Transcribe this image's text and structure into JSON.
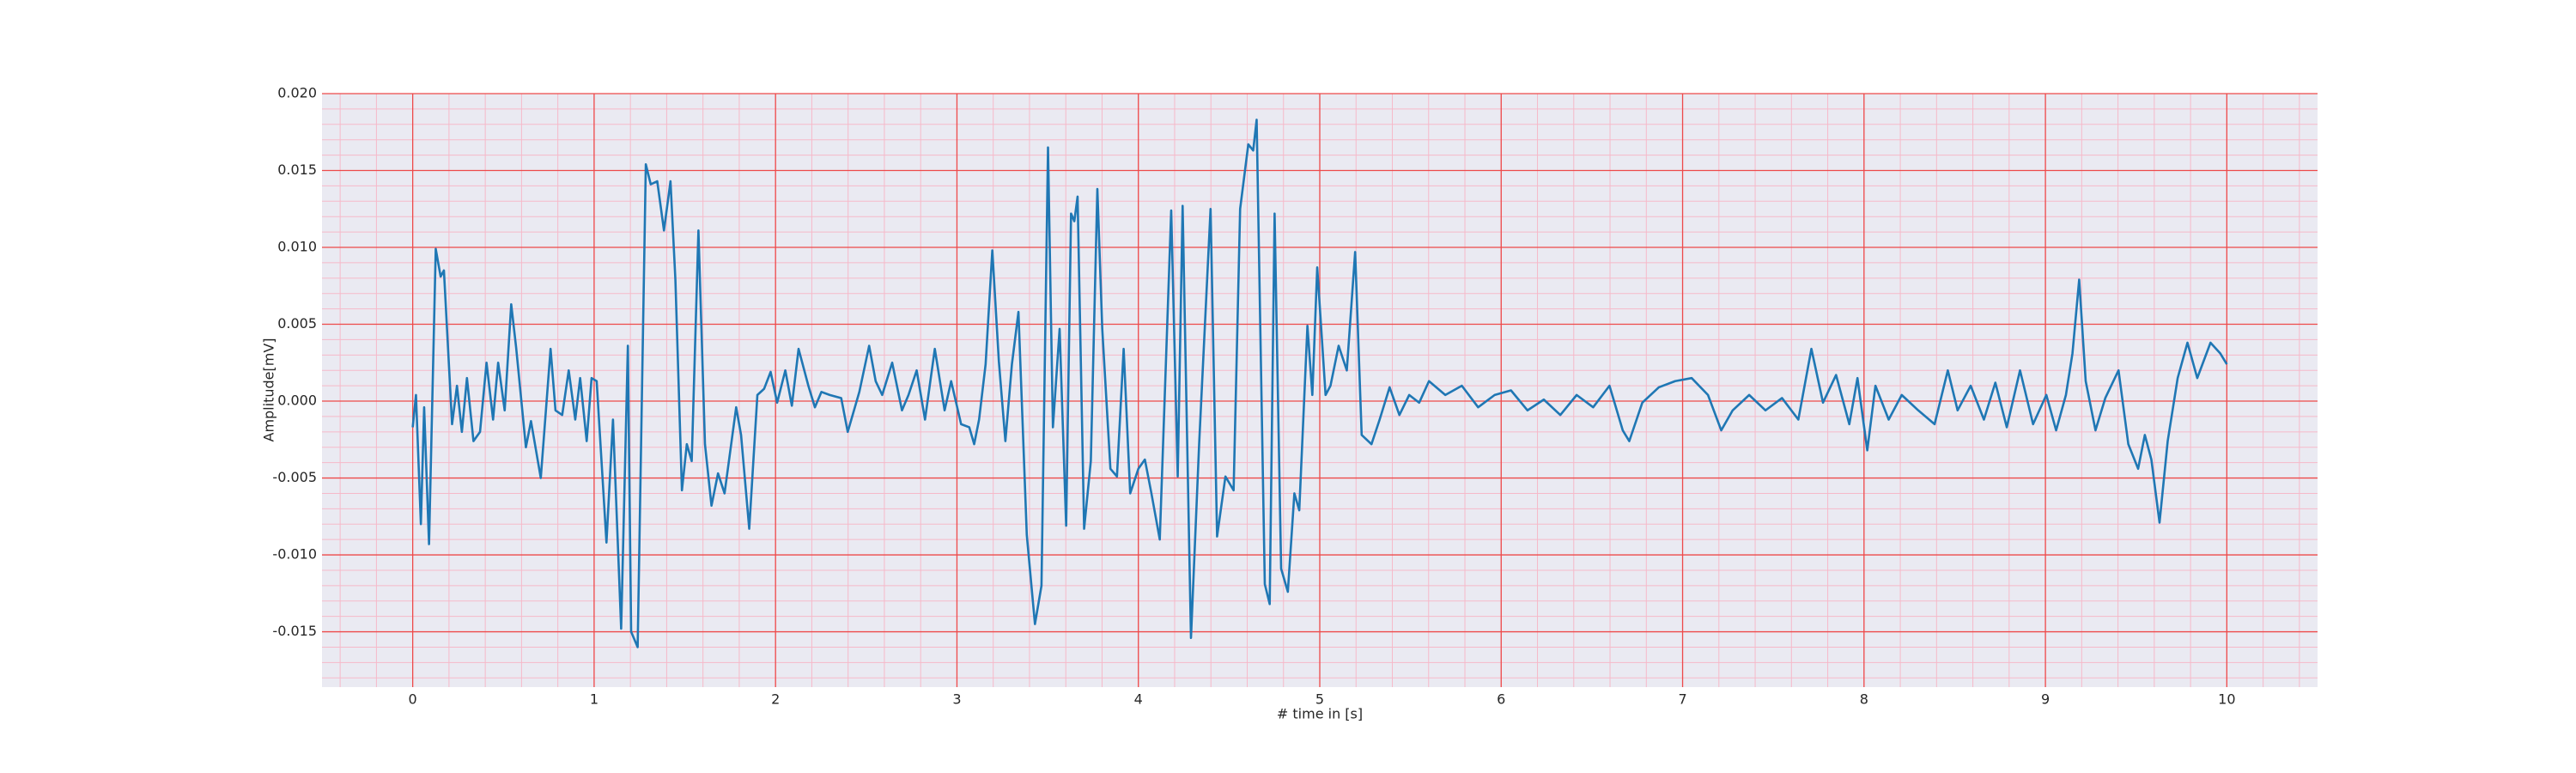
{
  "chart_data": {
    "type": "line",
    "xlabel": "# time in [s]",
    "ylabel": "Amplitude[mV]",
    "xlim": [
      -0.5,
      10.5
    ],
    "ylim": [
      -0.0186,
      0.02
    ],
    "xticks": [
      0,
      1,
      2,
      3,
      4,
      5,
      6,
      7,
      8,
      9,
      10
    ],
    "yticks": [
      {
        "value": -0.015,
        "label": "-0.015"
      },
      {
        "value": -0.01,
        "label": "-0.010"
      },
      {
        "value": -0.005,
        "label": "-0.005"
      },
      {
        "value": 0,
        "label": "0.000"
      },
      {
        "value": 0.005,
        "label": "0.005"
      },
      {
        "value": 0.01,
        "label": "0.010"
      },
      {
        "value": 0.015,
        "label": "0.015"
      },
      {
        "value": 0.02,
        "label": "0.020"
      }
    ],
    "grid": true,
    "minor_grid": true,
    "x": [
      0,
      0.018,
      0.045,
      0.063,
      0.09,
      0.127,
      0.154,
      0.172,
      0.217,
      0.244,
      0.271,
      0.299,
      0.335,
      0.371,
      0.407,
      0.443,
      0.471,
      0.507,
      0.543,
      0.57,
      0.624,
      0.652,
      0.706,
      0.76,
      0.787,
      0.824,
      0.86,
      0.896,
      0.923,
      0.959,
      0.986,
      1.014,
      1.068,
      1.104,
      1.149,
      1.186,
      1.204,
      1.24,
      1.285,
      1.312,
      1.348,
      1.385,
      1.421,
      1.448,
      1.484,
      1.511,
      1.538,
      1.575,
      1.611,
      1.647,
      1.683,
      1.719,
      1.783,
      1.81,
      1.855,
      1.9,
      1.937,
      1.973,
      2.009,
      2.054,
      2.09,
      2.127,
      2.181,
      2.217,
      2.253,
      2.299,
      2.362,
      2.398,
      2.462,
      2.516,
      2.552,
      2.588,
      2.643,
      2.697,
      2.733,
      2.778,
      2.824,
      2.878,
      2.932,
      2.968,
      3.023,
      3.068,
      3.095,
      3.122,
      3.158,
      3.195,
      3.231,
      3.267,
      3.303,
      3.339,
      3.385,
      3.43,
      3.466,
      3.502,
      3.529,
      3.566,
      3.602,
      3.629,
      3.647,
      3.665,
      3.701,
      3.738,
      3.774,
      3.801,
      3.846,
      3.882,
      3.919,
      3.955,
      4.0,
      4.036,
      4.072,
      4.118,
      4.181,
      4.217,
      4.244,
      4.29,
      4.335,
      4.398,
      4.434,
      4.48,
      4.525,
      4.561,
      4.606,
      4.633,
      4.652,
      4.697,
      4.724,
      4.751,
      4.787,
      4.824,
      4.86,
      4.887,
      4.932,
      4.959,
      4.986,
      5.032,
      5.059,
      5.104,
      5.149,
      5.195,
      5.231,
      5.285,
      5.33,
      5.385,
      5.439,
      5.493,
      5.548,
      5.602,
      5.692,
      5.783,
      5.873,
      5.964,
      6.054,
      6.145,
      6.235,
      6.326,
      6.416,
      6.507,
      6.597,
      6.67,
      6.706,
      6.778,
      6.869,
      6.959,
      7.05,
      7.14,
      7.213,
      7.276,
      7.367,
      7.457,
      7.548,
      7.638,
      7.71,
      7.774,
      7.846,
      7.919,
      7.964,
      8.018,
      8.063,
      8.136,
      8.208,
      8.299,
      8.389,
      8.462,
      8.516,
      8.588,
      8.661,
      8.724,
      8.787,
      8.86,
      8.932,
      9.005,
      9.059,
      9.113,
      9.149,
      9.186,
      9.222,
      9.276,
      9.33,
      9.403,
      9.457,
      9.511,
      9.548,
      9.584,
      9.629,
      9.674,
      9.729,
      9.783,
      9.837,
      9.91,
      9.964,
      10.0
    ],
    "series": [
      {
        "color": "#1f77b4",
        "values": [
          -0.0017,
          0.0004,
          -0.008,
          -0.0004,
          -0.0093,
          0.0099,
          0.0081,
          0.0085,
          -0.0015,
          0.001,
          -0.002,
          0.0015,
          -0.0026,
          -0.002,
          0.0025,
          -0.0012,
          0.0025,
          -0.0006,
          0.0063,
          0.0035,
          -0.003,
          -0.0013,
          -0.005,
          0.0034,
          -0.0006,
          -0.0009,
          0.002,
          -0.0012,
          0.0015,
          -0.0026,
          0.0015,
          0.0013,
          -0.0092,
          -0.0012,
          -0.0148,
          0.0036,
          -0.015,
          -0.016,
          0.0154,
          0.0141,
          0.0143,
          0.0111,
          0.0143,
          0.0079,
          -0.0058,
          -0.0028,
          -0.0039,
          0.0111,
          -0.0028,
          -0.0068,
          -0.0047,
          -0.006,
          -0.0004,
          -0.0022,
          -0.0083,
          0.0004,
          0.0008,
          0.0019,
          -0.0001,
          0.002,
          -0.0003,
          0.0034,
          0.001,
          -0.0004,
          0.0006,
          0.0004,
          0.0002,
          -0.002,
          0.0006,
          0.0036,
          0.0013,
          0.0004,
          0.0025,
          -0.0006,
          0.0004,
          0.002,
          -0.0012,
          0.0034,
          -0.0006,
          0.0013,
          -0.0015,
          -0.0017,
          -0.0028,
          -0.0012,
          0.0024,
          0.0098,
          0.0026,
          -0.0026,
          0.0024,
          0.0058,
          -0.0087,
          -0.0145,
          -0.012,
          0.0165,
          -0.0017,
          0.0047,
          -0.0081,
          0.0122,
          0.0117,
          0.0133,
          -0.0083,
          -0.0039,
          0.0138,
          0.0047,
          -0.0044,
          -0.0049,
          0.0034,
          -0.006,
          -0.0044,
          -0.0038,
          -0.006,
          -0.009,
          0.0124,
          -0.0049,
          0.0127,
          -0.0154,
          -0.0028,
          0.0125,
          -0.0088,
          -0.0049,
          -0.0058,
          0.0125,
          0.0167,
          0.0163,
          0.0183,
          -0.0119,
          -0.0132,
          0.0122,
          -0.0109,
          -0.0124,
          -0.006,
          -0.0071,
          0.0049,
          0.0004,
          0.0087,
          0.0004,
          0.001,
          0.0036,
          0.002,
          0.0097,
          -0.0022,
          -0.0028,
          -0.0012,
          0.0009,
          -0.0009,
          0.0004,
          -0.0001,
          0.0013,
          0.0004,
          0.001,
          -0.0004,
          0.0004,
          0.0007,
          -0.0006,
          0.0001,
          -0.0009,
          0.0004,
          -0.0004,
          0.001,
          -0.0019,
          -0.0026,
          -0.0001,
          0.0009,
          0.0013,
          0.0015,
          0.0004,
          -0.0019,
          -0.0006,
          0.0004,
          -0.0006,
          0.0002,
          -0.0012,
          0.0034,
          -0.0001,
          0.0017,
          -0.0015,
          0.0015,
          -0.0032,
          0.001,
          -0.0012,
          0.0004,
          -0.0006,
          -0.0015,
          0.002,
          -0.0006,
          0.001,
          -0.0012,
          0.0012,
          -0.0017,
          0.002,
          -0.0015,
          0.0004,
          -0.0019,
          0.0004,
          0.0031,
          0.0079,
          0.0013,
          -0.0019,
          0.0002,
          0.002,
          -0.0028,
          -0.0044,
          -0.0022,
          -0.0038,
          -0.0079,
          -0.0026,
          0.0015,
          0.0038,
          0.0015,
          0.0038,
          0.0031,
          0.0024
        ]
      }
    ]
  }
}
